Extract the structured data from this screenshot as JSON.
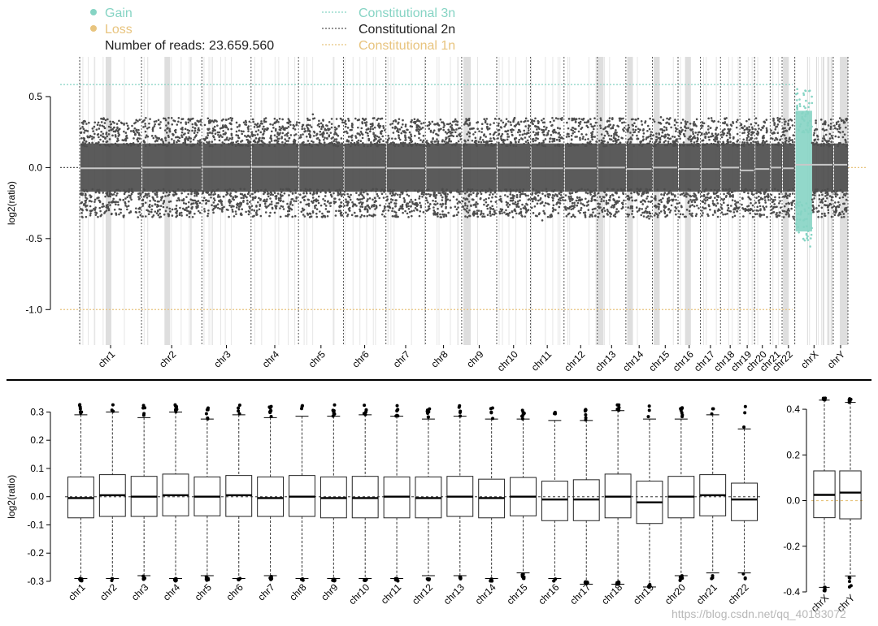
{
  "colors": {
    "gain": "#86d4c4",
    "loss": "#e8c47e",
    "neutral": "#4d4d4d",
    "segment": "#c8c8c8",
    "band": "#dedede",
    "twon": "#555555",
    "box": "#222222"
  },
  "legend": {
    "gain": "Gain",
    "loss": "Loss",
    "reads": "Number of reads: 23.659.560",
    "c3n": "Constitutional 3n",
    "c2n": "Constitutional 2n",
    "c1n": "Constitutional 1n"
  },
  "watermark": "https://blog.csdn.net/qq_40183072",
  "chart_data": [
    {
      "type": "scatter",
      "ylabel": "log2(ratio)",
      "ylim": [
        -1.25,
        0.78
      ],
      "yticks": [
        0.5,
        0.0,
        -0.5,
        -1.0
      ],
      "ytick_labels": [
        "0.5",
        "0.0",
        "-0.5",
        "-1.0"
      ],
      "reference_lines": {
        "3n": 0.585,
        "2n": 0.0,
        "1n": -1.0
      },
      "grid": false,
      "legend_position": "top-left",
      "chromosomes": [
        {
          "name": "chr1",
          "len": 249,
          "segment": -0.005,
          "status": "neutral"
        },
        {
          "name": "chr2",
          "len": 243,
          "segment": 0.0,
          "status": "neutral"
        },
        {
          "name": "chr3",
          "len": 198,
          "segment": 0.005,
          "status": "neutral"
        },
        {
          "name": "chr4",
          "len": 191,
          "segment": 0.005,
          "status": "neutral"
        },
        {
          "name": "chr5",
          "len": 181,
          "segment": 0.0,
          "status": "neutral"
        },
        {
          "name": "chr6",
          "len": 171,
          "segment": 0.0,
          "status": "neutral"
        },
        {
          "name": "chr7",
          "len": 159,
          "segment": -0.005,
          "status": "neutral"
        },
        {
          "name": "chr8",
          "len": 146,
          "segment": 0.0,
          "status": "neutral"
        },
        {
          "name": "chr9",
          "len": 141,
          "segment": -0.005,
          "status": "neutral"
        },
        {
          "name": "chr10",
          "len": 136,
          "segment": 0.0,
          "status": "neutral"
        },
        {
          "name": "chr11",
          "len": 135,
          "segment": -0.005,
          "status": "neutral"
        },
        {
          "name": "chr12",
          "len": 134,
          "segment": -0.005,
          "status": "neutral"
        },
        {
          "name": "chr13",
          "len": 115,
          "segment": 0.0,
          "status": "neutral"
        },
        {
          "name": "chr14",
          "len": 107,
          "segment": -0.01,
          "status": "neutral"
        },
        {
          "name": "chr15",
          "len": 103,
          "segment": 0.0,
          "status": "neutral"
        },
        {
          "name": "chr16",
          "len": 90,
          "segment": -0.01,
          "status": "neutral"
        },
        {
          "name": "chr17",
          "len": 81,
          "segment": -0.01,
          "status": "neutral"
        },
        {
          "name": "chr18",
          "len": 78,
          "segment": 0.0,
          "status": "neutral"
        },
        {
          "name": "chr19",
          "len": 59,
          "segment": -0.02,
          "status": "neutral"
        },
        {
          "name": "chr20",
          "len": 63,
          "segment": -0.01,
          "status": "neutral"
        },
        {
          "name": "chr21",
          "len": 48,
          "segment": 0.0,
          "status": "neutral"
        },
        {
          "name": "chr22",
          "len": 51,
          "segment": -0.005,
          "status": "neutral"
        },
        {
          "name": "chrX",
          "len": 155,
          "segment": 0.02,
          "status": "mixed"
        },
        {
          "name": "chrY",
          "len": 59,
          "segment": 0.02,
          "status": "neutral"
        }
      ]
    },
    {
      "type": "box",
      "ylabel": "log2(ratio)",
      "ylim": [
        -0.3,
        0.33
      ],
      "yticks": [
        0.3,
        0.2,
        0.1,
        0.0,
        -0.1,
        -0.2,
        -0.3
      ],
      "ytick_labels": [
        "0.3",
        "0.2",
        "0.1",
        "0.0",
        "-0.1",
        "-0.2",
        "-0.3"
      ],
      "categories": [
        "chr1",
        "chr2",
        "chr3",
        "chr4",
        "chr5",
        "chr6",
        "chr7",
        "chr8",
        "chr9",
        "chr10",
        "chr11",
        "chr12",
        "chr13",
        "chr14",
        "chr15",
        "chr16",
        "chr17",
        "chr18",
        "chr19",
        "chr20",
        "chr21",
        "chr22"
      ],
      "boxes": [
        {
          "q1": -0.075,
          "median": -0.005,
          "q3": 0.07,
          "lw": -0.29,
          "uw": 0.29
        },
        {
          "q1": -0.07,
          "median": 0.005,
          "q3": 0.078,
          "lw": -0.29,
          "uw": 0.3
        },
        {
          "q1": -0.07,
          "median": 0.0,
          "q3": 0.072,
          "lw": -0.28,
          "uw": 0.28
        },
        {
          "q1": -0.068,
          "median": 0.005,
          "q3": 0.08,
          "lw": -0.29,
          "uw": 0.3
        },
        {
          "q1": -0.068,
          "median": 0.0,
          "q3": 0.07,
          "lw": -0.28,
          "uw": 0.275
        },
        {
          "q1": -0.07,
          "median": 0.005,
          "q3": 0.075,
          "lw": -0.29,
          "uw": 0.29
        },
        {
          "q1": -0.07,
          "median": -0.005,
          "q3": 0.07,
          "lw": -0.28,
          "uw": 0.28
        },
        {
          "q1": -0.07,
          "median": 0.0,
          "q3": 0.075,
          "lw": -0.29,
          "uw": 0.285
        },
        {
          "q1": -0.075,
          "median": -0.005,
          "q3": 0.07,
          "lw": -0.29,
          "uw": 0.285
        },
        {
          "q1": -0.075,
          "median": -0.005,
          "q3": 0.072,
          "lw": -0.29,
          "uw": 0.29
        },
        {
          "q1": -0.075,
          "median": 0.0,
          "q3": 0.07,
          "lw": -0.29,
          "uw": 0.285
        },
        {
          "q1": -0.075,
          "median": -0.005,
          "q3": 0.07,
          "lw": -0.28,
          "uw": 0.275
        },
        {
          "q1": -0.07,
          "median": 0.0,
          "q3": 0.072,
          "lw": -0.28,
          "uw": 0.285
        },
        {
          "q1": -0.075,
          "median": -0.005,
          "q3": 0.062,
          "lw": -0.29,
          "uw": 0.275
        },
        {
          "q1": -0.068,
          "median": 0.0,
          "q3": 0.068,
          "lw": -0.27,
          "uw": 0.275
        },
        {
          "q1": -0.085,
          "median": -0.01,
          "q3": 0.055,
          "lw": -0.29,
          "uw": 0.27
        },
        {
          "q1": -0.085,
          "median": -0.01,
          "q3": 0.06,
          "lw": -0.31,
          "uw": 0.27
        },
        {
          "q1": -0.075,
          "median": 0.0,
          "q3": 0.08,
          "lw": -0.31,
          "uw": 0.305
        },
        {
          "q1": -0.095,
          "median": -0.02,
          "q3": 0.055,
          "lw": -0.32,
          "uw": 0.275
        },
        {
          "q1": -0.075,
          "median": 0.0,
          "q3": 0.072,
          "lw": -0.28,
          "uw": 0.275
        },
        {
          "q1": -0.068,
          "median": 0.005,
          "q3": 0.078,
          "lw": -0.27,
          "uw": 0.29
        },
        {
          "q1": -0.085,
          "median": -0.01,
          "q3": 0.048,
          "lw": -0.27,
          "uw": 0.24
        }
      ]
    },
    {
      "type": "box",
      "ylabel": "",
      "ylim": [
        -0.4,
        0.45
      ],
      "yticks": [
        0.4,
        0.2,
        0.0,
        -0.2,
        -0.4
      ],
      "ytick_labels": [
        "0.4",
        "0.2",
        "0.0",
        "-0.2",
        "-0.4"
      ],
      "categories": [
        "chrX",
        "chrY"
      ],
      "boxes": [
        {
          "q1": -0.075,
          "median": 0.025,
          "q3": 0.13,
          "lw": -0.38,
          "uw": 0.44
        },
        {
          "q1": -0.08,
          "median": 0.035,
          "q3": 0.13,
          "lw": -0.33,
          "uw": 0.43
        }
      ]
    }
  ]
}
